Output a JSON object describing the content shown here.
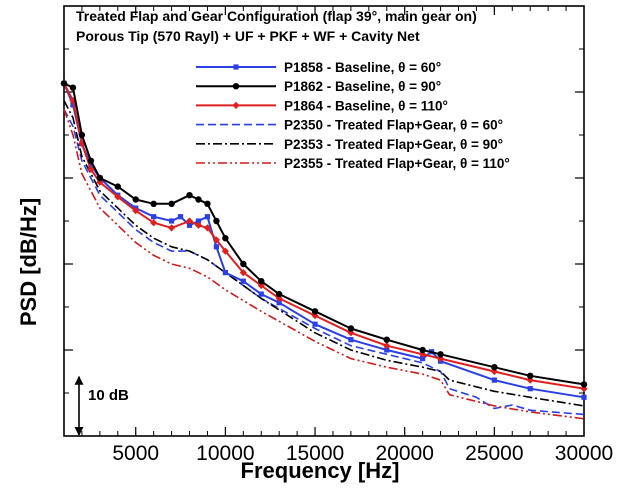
{
  "chart_data": {
    "type": "line",
    "title_lines": [
      "Treated Flap and Gear Configuration (flap 39°, main gear on)",
      "Porous Tip (570 Rayl) + UF + PKF + WF + Cavity Net"
    ],
    "xlabel": "Frequency [Hz]",
    "ylabel": "PSD [dB/Hz]",
    "xlim": [
      1000,
      30000
    ],
    "ylim": [
      0,
      50
    ],
    "xticks": [
      5000,
      10000,
      15000,
      20000,
      25000,
      30000
    ],
    "xtick_labels": [
      "5000",
      "10000",
      "15000",
      "20000",
      "25000",
      "30000"
    ],
    "y_scale_annotation": "10 dB",
    "y_scale_range": [
      0,
      7
    ],
    "grid": false,
    "legend_position": "top-right",
    "series": [
      {
        "name": "P1858 - Baseline,  θ = 60°",
        "color": "#2b3fe6",
        "dash": "solid",
        "marker": "square",
        "x": [
          1000,
          1500,
          2000,
          2500,
          3000,
          4000,
          5000,
          6000,
          7000,
          7500,
          8000,
          8500,
          9000,
          9500,
          10000,
          11000,
          12000,
          13000,
          15000,
          17000,
          19000,
          21000,
          21500,
          22000,
          25000,
          27000,
          30000
        ],
        "y": [
          41,
          38.5,
          34,
          31.5,
          30,
          28,
          26.5,
          25.5,
          25,
          25.5,
          24.5,
          25,
          25.5,
          22,
          19,
          18,
          16.5,
          15.5,
          13,
          11.2,
          10,
          9,
          9.8,
          8.7,
          6.5,
          5.5,
          4.5
        ]
      },
      {
        "name": "P1862 - Baseline,  θ = 90°",
        "color": "#000000",
        "dash": "solid",
        "marker": "circle",
        "x": [
          1000,
          1500,
          2000,
          2500,
          3000,
          4000,
          5000,
          6000,
          7000,
          8000,
          8500,
          9000,
          9500,
          10000,
          11000,
          12000,
          13000,
          15000,
          17000,
          19000,
          21000,
          22000,
          25000,
          27000,
          30000
        ],
        "y": [
          41,
          40.5,
          35,
          32,
          30,
          29,
          27.5,
          27,
          27,
          28,
          27.5,
          27,
          25,
          23,
          20,
          18,
          16.5,
          14.5,
          12.5,
          11.2,
          10,
          9.5,
          8,
          7,
          6
        ]
      },
      {
        "name": "P1864 - Baseline,  θ = 110°",
        "color": "#e01f1f",
        "dash": "solid",
        "marker": "diamond",
        "x": [
          1000,
          1500,
          2000,
          2500,
          3000,
          4000,
          5000,
          6000,
          7000,
          8000,
          8500,
          9000,
          9500,
          10000,
          11000,
          12000,
          13000,
          15000,
          17000,
          19000,
          21000,
          22000,
          25000,
          27000,
          30000
        ],
        "y": [
          41,
          39,
          34,
          31,
          29.5,
          27.8,
          26.2,
          24.8,
          24.2,
          25,
          24.5,
          24.2,
          22.8,
          21.5,
          19,
          17.5,
          16,
          14,
          12,
          10.5,
          9.5,
          9,
          7.5,
          6.5,
          5.5
        ]
      },
      {
        "name": "P2350 - Treated Flap+Gear,  θ = 60°",
        "color": "#2b3fe6",
        "dash": "dash",
        "x": [
          1000,
          1500,
          2000,
          3000,
          4000,
          5000,
          6000,
          7000,
          8000,
          9000,
          10000,
          12000,
          15000,
          17000,
          19000,
          21000,
          22000,
          22500,
          24000,
          25000,
          26000,
          27000,
          30000
        ],
        "y": [
          38,
          36,
          32,
          28,
          26,
          24,
          22.5,
          21.5,
          21.5,
          20.5,
          19,
          16,
          12.5,
          10.5,
          9.5,
          8.5,
          7.5,
          5.5,
          4.5,
          3.2,
          3.6,
          3.0,
          2.5
        ]
      },
      {
        "name": "P2353 - Treated Flap+Gear, θ = 90°",
        "color": "#000000",
        "dash": "dashdot",
        "x": [
          1000,
          1500,
          2000,
          3000,
          4000,
          5000,
          6000,
          7000,
          8000,
          9000,
          10000,
          12000,
          15000,
          17000,
          19000,
          21000,
          22000,
          22500,
          25000,
          27000,
          30000
        ],
        "y": [
          39,
          37,
          32.5,
          28.5,
          26.5,
          24.5,
          23,
          22,
          21.5,
          20.5,
          19,
          16,
          12,
          10,
          8.8,
          8,
          7.5,
          6.5,
          5.2,
          4.5,
          3.5
        ]
      },
      {
        "name": "P2355 - Treated Flap+Gear, θ = 110°",
        "color": "#d21818",
        "dash": "dashdotdot",
        "x": [
          1000,
          1500,
          2000,
          3000,
          4000,
          5000,
          6000,
          7000,
          8000,
          9000,
          10000,
          12000,
          15000,
          17000,
          19000,
          21000,
          22000,
          22500,
          25000,
          27000,
          30000
        ],
        "y": [
          38,
          35,
          30.5,
          26.5,
          24.5,
          22.5,
          21,
          20,
          19.5,
          18.5,
          17,
          14.5,
          11,
          9,
          8,
          7.2,
          6.5,
          4.8,
          3.5,
          2.8,
          2.0
        ]
      }
    ]
  }
}
